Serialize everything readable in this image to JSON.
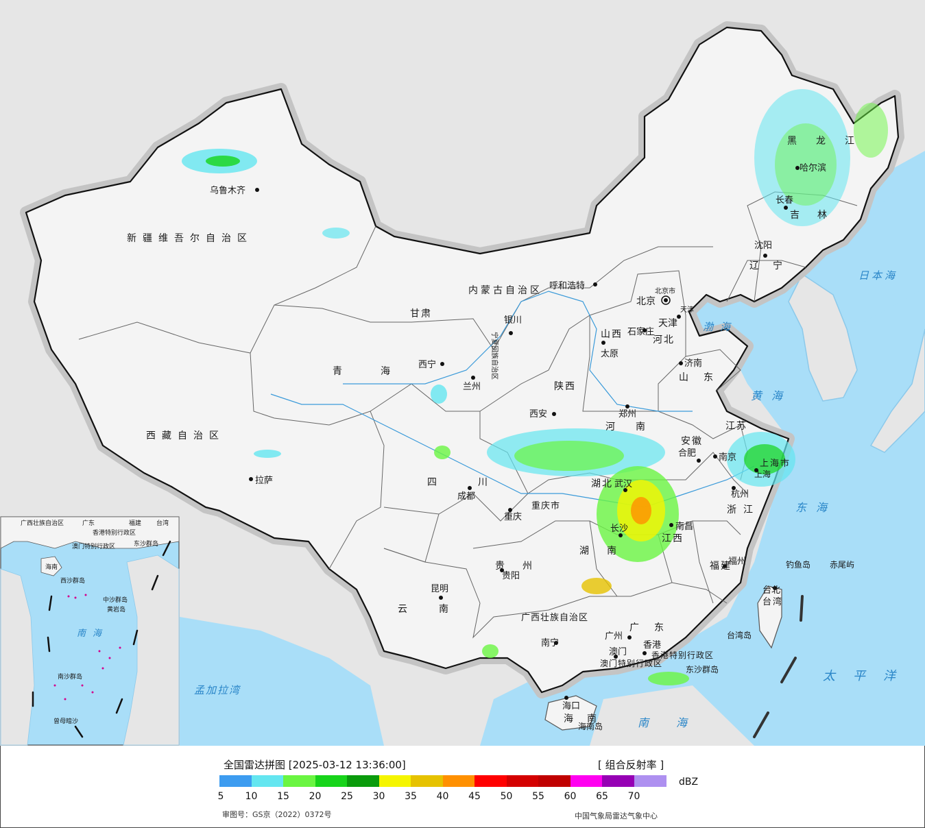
{
  "map": {
    "seas": [
      "日本海",
      "渤海",
      "黄海",
      "东海",
      "太平洋",
      "南海",
      "南海",
      "孟加拉湾"
    ],
    "capitals": [
      "北京",
      "天津",
      "石家庄",
      "太原",
      "呼和浩特",
      "沈阳",
      "长春",
      "哈尔滨",
      "上海",
      "南京",
      "杭州",
      "合肥",
      "福州",
      "南昌",
      "济南",
      "郑州",
      "武汉",
      "长沙",
      "广州",
      "南宁",
      "海口",
      "成都",
      "重庆",
      "贵阳",
      "昆明",
      "拉萨",
      "西安",
      "兰州",
      "西宁",
      "银川",
      "乌鲁木齐",
      "台北",
      "香港",
      "澳门"
    ],
    "regions": [
      "新疆维吾尔自治区",
      "西藏自治区",
      "青海",
      "甘肃",
      "内蒙古自治区",
      "黑龙江",
      "吉林",
      "辽宁",
      "河北",
      "山西",
      "陕西",
      "河南",
      "山东",
      "江苏",
      "安徽",
      "浙江",
      "江西",
      "福建",
      "湖北",
      "湖南",
      "四川",
      "重庆市",
      "贵州",
      "云南",
      "广西壮族自治区",
      "广东",
      "海南",
      "台湾",
      "上海市",
      "北京市",
      "天津",
      "宁夏回族自治区",
      "香港特别行政区",
      "澳门特别行政区"
    ],
    "islands": [
      "钓鱼岛",
      "赤尾屿",
      "台湾岛",
      "东沙群岛",
      "海南岛"
    ],
    "inset_labels": [
      "广西壮族自治区",
      "广东",
      "福建",
      "台湾",
      "香港特别行政区",
      "澳门特别行政区",
      "海南",
      "东沙群岛",
      "西沙群岛",
      "中沙群岛",
      "黄岩岛",
      "南海",
      "南沙群岛",
      "曾母暗沙"
    ]
  },
  "legend": {
    "title": "全国雷达拼图 [2025-03-12 13:36:00]",
    "product": "[ 组合反射率 ]",
    "unit": "dBZ",
    "ticks": [
      "5",
      "10",
      "15",
      "20",
      "25",
      "30",
      "35",
      "40",
      "45",
      "50",
      "55",
      "60",
      "65",
      "70"
    ],
    "colors": [
      "#3d9cf0",
      "#64e6f0",
      "#6af542",
      "#17d41a",
      "#0a9b0c",
      "#f5f500",
      "#e6c200",
      "#ff9000",
      "#ff0000",
      "#d40000",
      "#c00000",
      "#ff00f0",
      "#9600b4",
      "#ae90f0"
    ],
    "review_no": "审图号：GS京（2022）0372号",
    "credit": "中国气象局雷达气象中心"
  }
}
